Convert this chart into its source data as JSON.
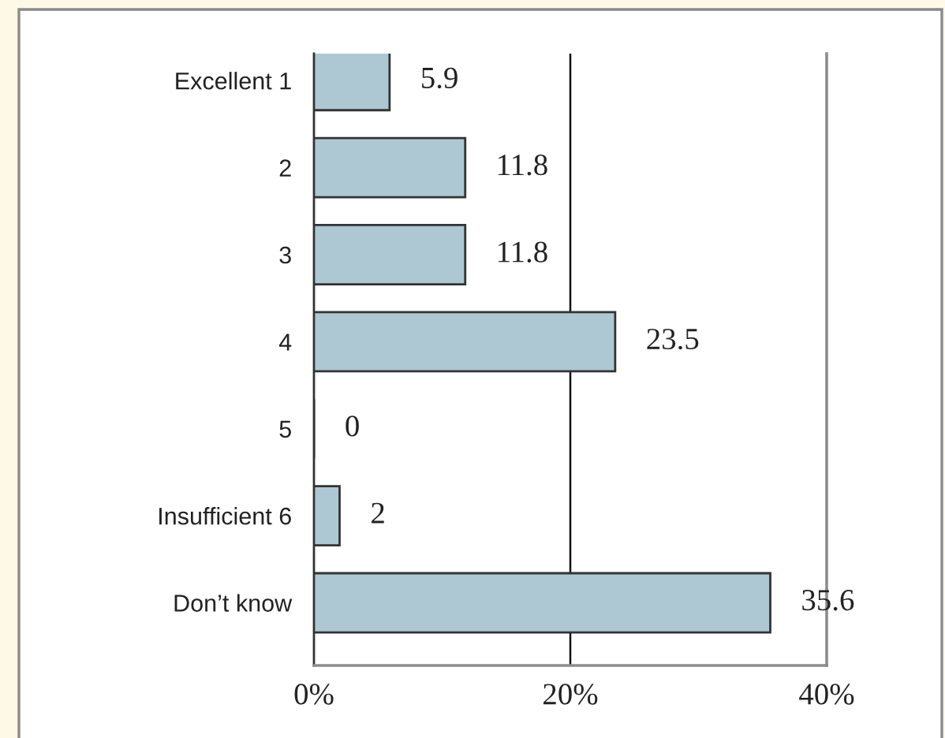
{
  "chart_data": {
    "type": "bar",
    "orientation": "horizontal",
    "categories": [
      "Excellent 1",
      "2",
      "3",
      "4",
      "5",
      "Insufficient 6",
      "Don’t know"
    ],
    "values": [
      5.9,
      11.8,
      11.8,
      23.5,
      0,
      2,
      35.6
    ],
    "color": "#aec8d3",
    "xlim": [
      0,
      40
    ],
    "xticks": [
      {
        "value": 0,
        "label": "0%"
      },
      {
        "value": 20,
        "label": "20%"
      },
      {
        "value": 40,
        "label": "40%"
      }
    ],
    "ref_lines": [
      {
        "axis": "x",
        "value": 20,
        "color": "#111111",
        "line_style": "solid"
      }
    ],
    "data_labels": true
  }
}
